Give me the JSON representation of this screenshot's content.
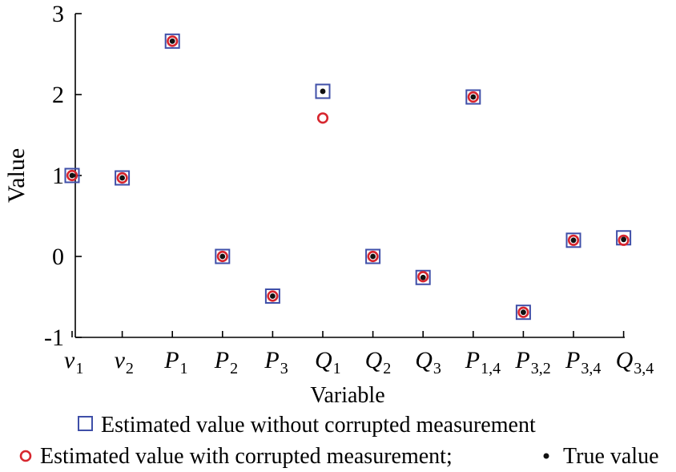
{
  "chart_data": {
    "type": "scatter",
    "xlabel": "Variable",
    "ylabel": "Value",
    "ylim": [
      -1,
      3
    ],
    "yticks": [
      "3",
      "2",
      "1",
      "0",
      "-1"
    ],
    "categories": [
      {
        "main": "v",
        "sub": "1"
      },
      {
        "main": "v",
        "sub": "2"
      },
      {
        "main": "P",
        "sub": "1"
      },
      {
        "main": "P",
        "sub": "2"
      },
      {
        "main": "P",
        "sub": "3"
      },
      {
        "main": "Q",
        "sub": "1"
      },
      {
        "main": "Q",
        "sub": "2"
      },
      {
        "main": "Q",
        "sub": "3"
      },
      {
        "main": "P",
        "sub": "1,4"
      },
      {
        "main": "P",
        "sub": "3,2"
      },
      {
        "main": "P",
        "sub": "3,4"
      },
      {
        "main": "Q",
        "sub": "3,4"
      }
    ],
    "series": [
      {
        "name": "Estimated value without corrupted measurement",
        "marker": "square",
        "color": "#3f4fa8",
        "values": [
          1.0,
          0.97,
          2.66,
          0.0,
          -0.49,
          2.04,
          0.0,
          -0.26,
          1.97,
          -0.69,
          0.2,
          0.23
        ]
      },
      {
        "name": "Estimated value with corrupted measurement",
        "marker": "circle",
        "color": "#d7262e",
        "values": [
          1.0,
          0.97,
          2.66,
          0.0,
          -0.49,
          1.71,
          0.0,
          -0.25,
          1.97,
          -0.69,
          0.2,
          0.2
        ]
      },
      {
        "name": "True value",
        "marker": "dot",
        "color": "#111111",
        "values": [
          1.0,
          0.97,
          2.66,
          0.0,
          -0.49,
          2.04,
          0.0,
          -0.26,
          1.97,
          -0.69,
          0.2,
          0.21
        ]
      }
    ]
  },
  "legend": {
    "line1": "Estimated value without corrupted measurement",
    "line2a": "Estimated value with corrupted measurement;",
    "line2b": "True value"
  }
}
